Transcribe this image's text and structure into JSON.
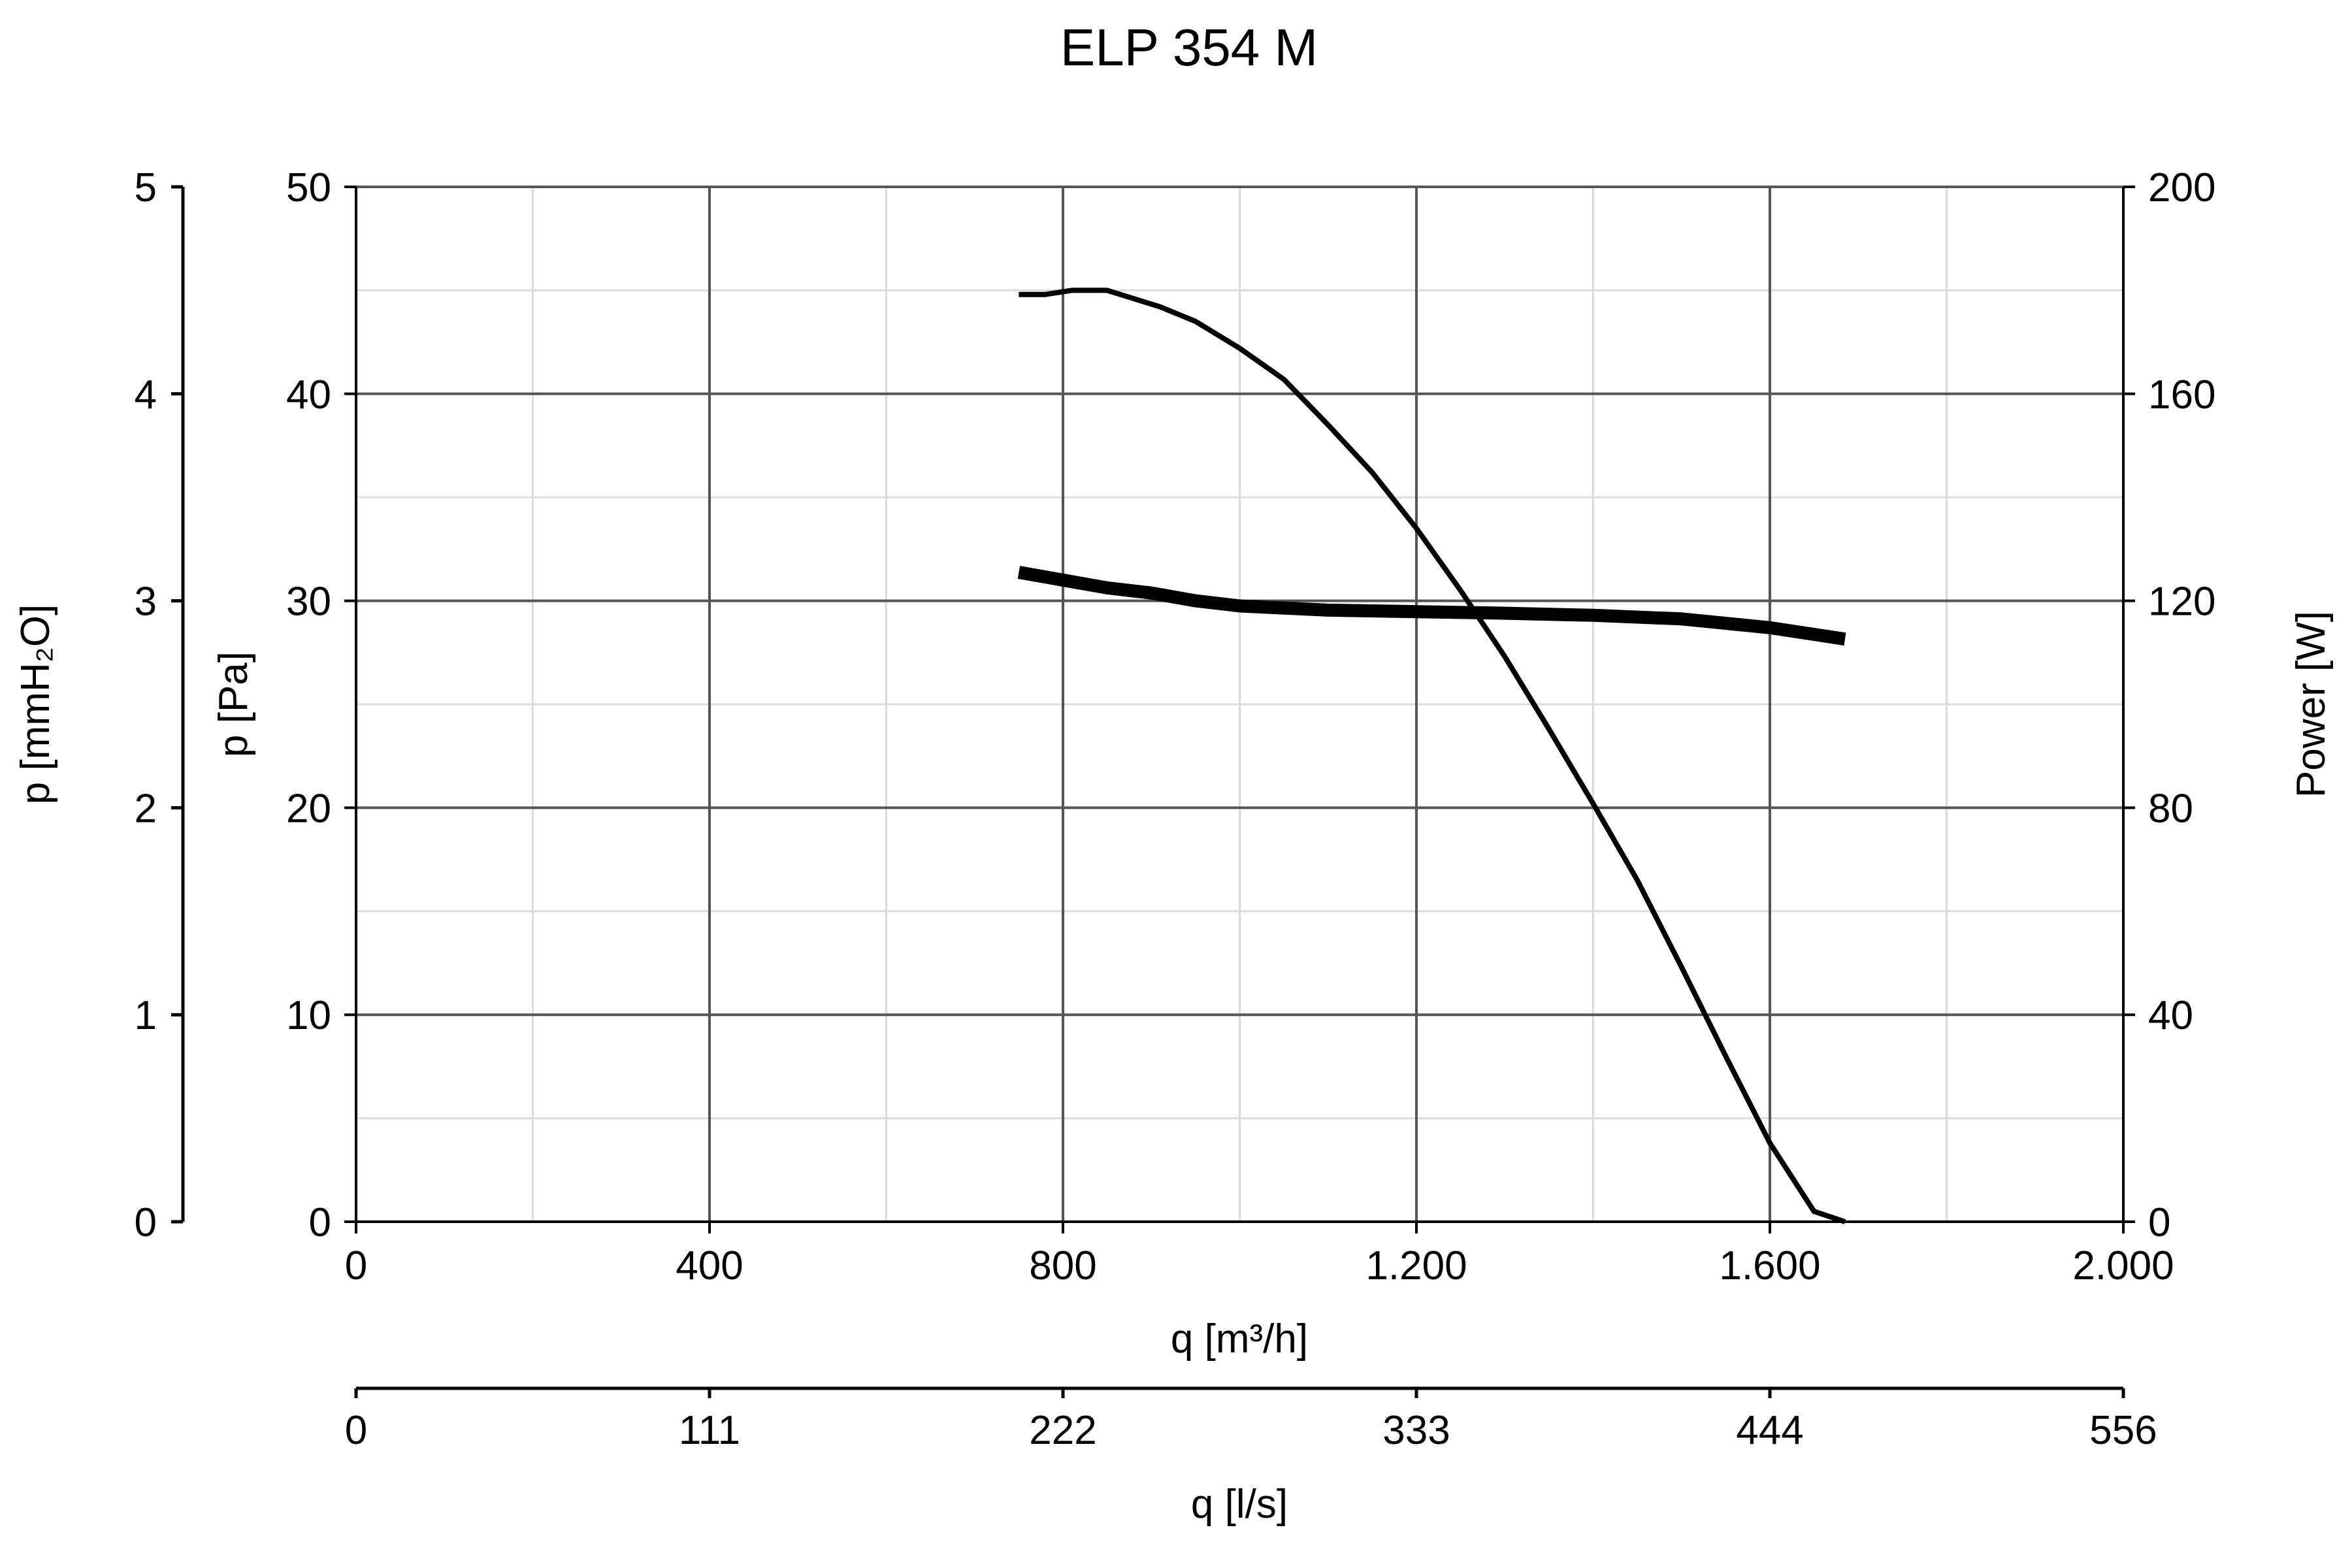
{
  "chart_data": {
    "type": "line",
    "title": "ELP 354 M",
    "x_axis": {
      "label": "q [m³/h]",
      "range": [
        0,
        2000
      ],
      "ticks": [
        0,
        400,
        800,
        1200,
        1600,
        2000
      ],
      "tick_labels": [
        "0",
        "400",
        "800",
        "1.200",
        "1.600",
        "2.000"
      ]
    },
    "x2_axis": {
      "label": "q [l/s]",
      "range": [
        0,
        556
      ],
      "tick_labels": [
        "0",
        "111",
        "222",
        "333",
        "444",
        "556"
      ]
    },
    "y_axis": {
      "label": "p [Pa]",
      "range": [
        0,
        50
      ],
      "ticks": [
        0,
        10,
        20,
        30,
        40,
        50
      ],
      "tick_labels": [
        "0",
        "10",
        "20",
        "30",
        "40",
        "50"
      ]
    },
    "y_mmh2o_axis": {
      "label": "p [mmH₂O]",
      "range": [
        0,
        5
      ],
      "tick_labels": [
        "0",
        "1",
        "2",
        "3",
        "4",
        "5"
      ]
    },
    "y2_axis": {
      "label": "Power [W]",
      "range": [
        0,
        200
      ],
      "tick_labels": [
        "0",
        "40",
        "80",
        "120",
        "160",
        "200"
      ]
    },
    "grid": true,
    "series": [
      {
        "axis": "pressure",
        "stroke": "#000000",
        "x": [
          750,
          780,
          810,
          850,
          880,
          910,
          950,
          1000,
          1050,
          1100,
          1150,
          1200,
          1250,
          1300,
          1350,
          1400,
          1450,
          1500,
          1550,
          1600,
          1650,
          1685
        ],
        "y": [
          44.8,
          44.8,
          45.0,
          45.0,
          44.6,
          44.2,
          43.5,
          42.2,
          40.7,
          38.5,
          36.2,
          33.5,
          30.5,
          27.3,
          23.8,
          20.2,
          16.5,
          12.3,
          8.0,
          3.8,
          0.5,
          0
        ]
      },
      {
        "axis": "power",
        "stroke": "#000000",
        "x": [
          750,
          800,
          850,
          900,
          950,
          1000,
          1100,
          1200,
          1300,
          1400,
          1500,
          1600,
          1685
        ],
        "y": [
          125.5,
          124.0,
          122.5,
          121.5,
          120.0,
          119.0,
          118.2,
          117.9,
          117.6,
          117.2,
          116.5,
          114.8,
          112.6
        ]
      }
    ]
  }
}
